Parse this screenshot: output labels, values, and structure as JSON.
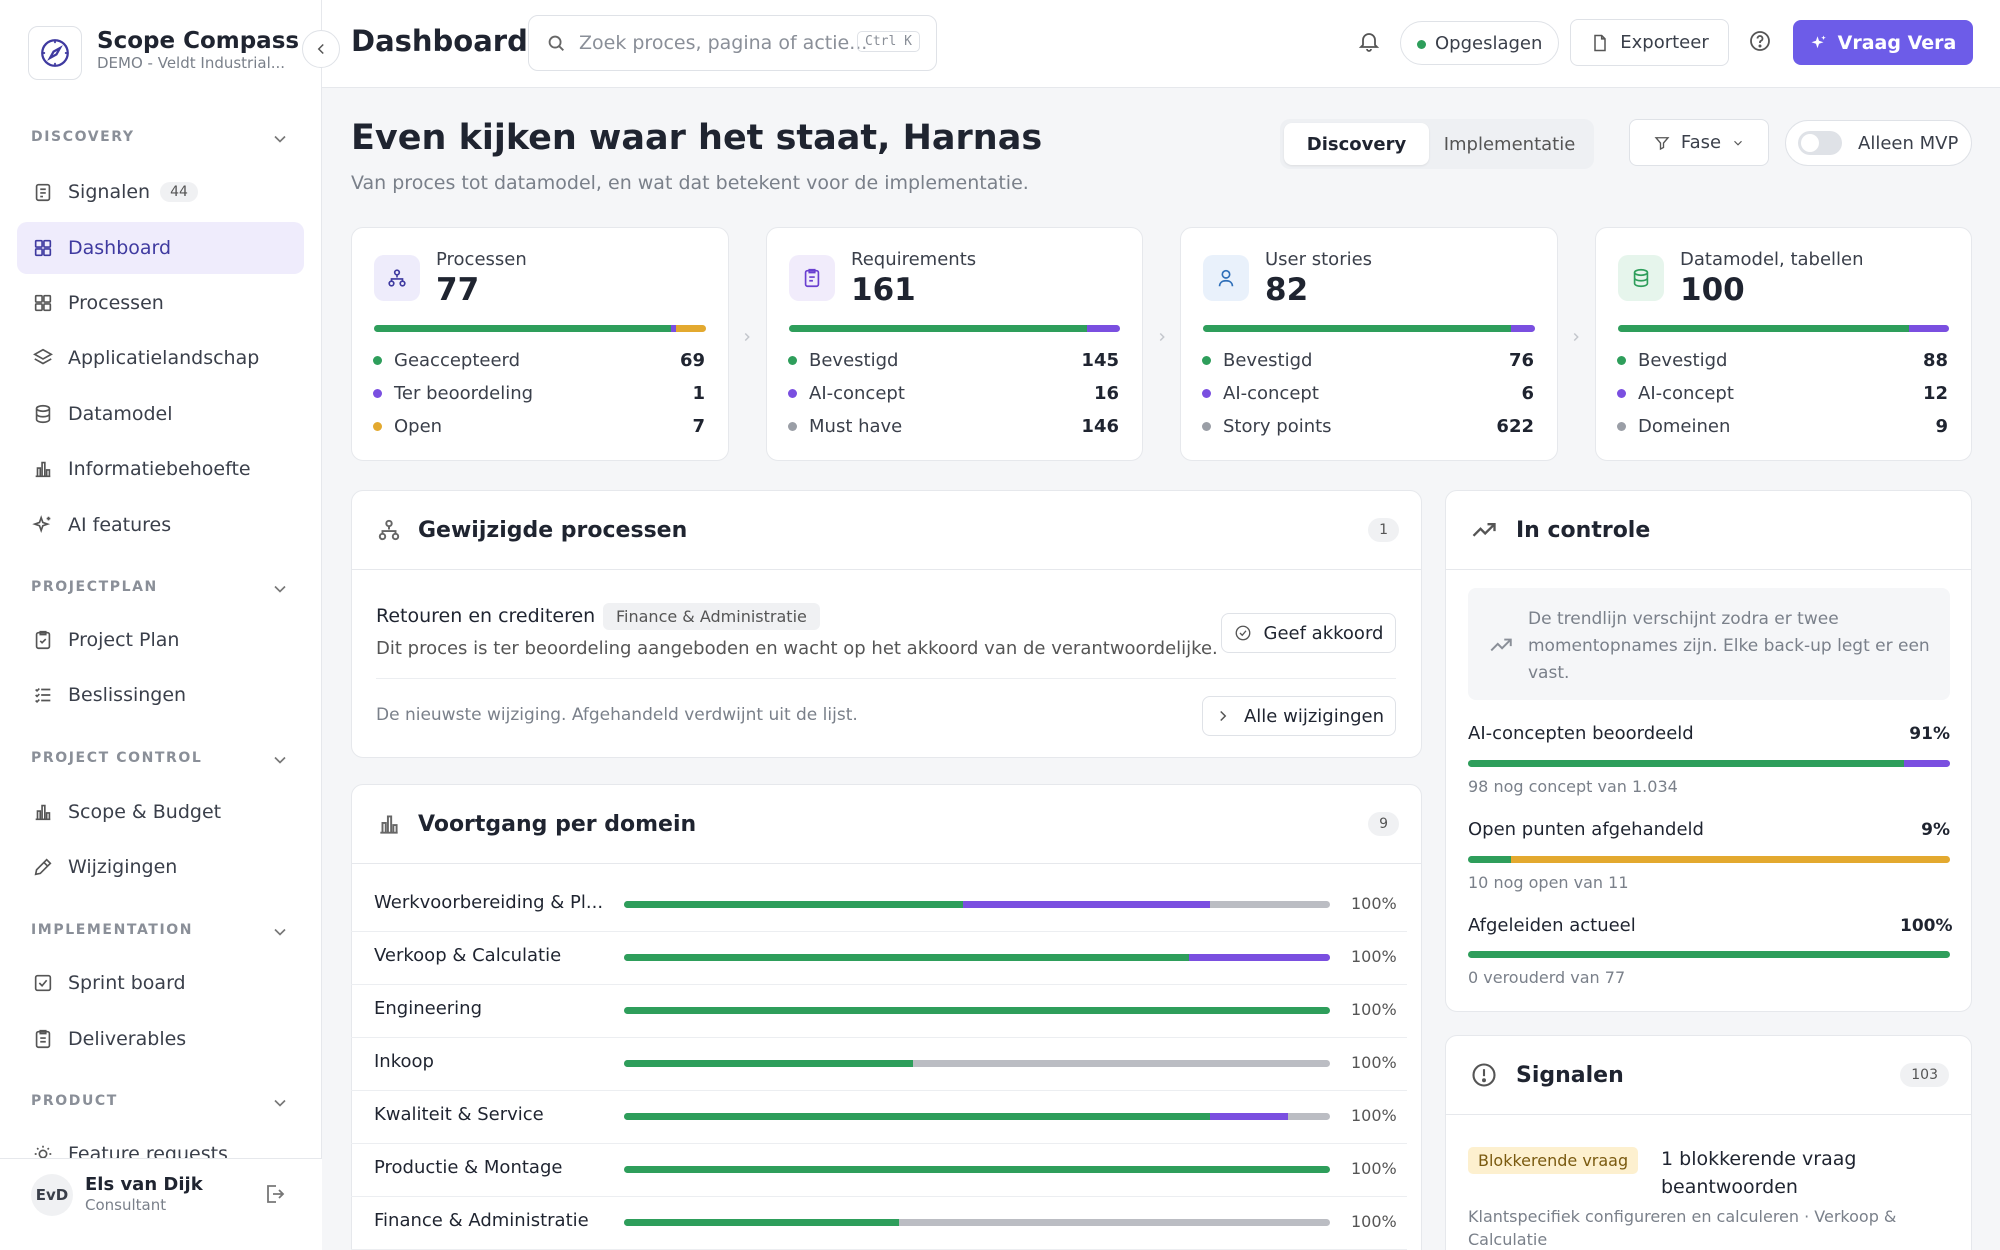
{
  "app": {
    "name": "Scope Compass",
    "subtitle": "DEMO - Veldt Industrial..."
  },
  "sidebar": {
    "sections": [
      {
        "label": "DISCOVERY"
      },
      {
        "label": "PROJECTPLAN"
      },
      {
        "label": "PROJECT CONTROL"
      },
      {
        "label": "IMPLEMENTATION"
      },
      {
        "label": "PRODUCT"
      }
    ],
    "items": [
      {
        "label": "Signalen",
        "count": "44"
      },
      {
        "label": "Dashboard"
      },
      {
        "label": "Processen"
      },
      {
        "label": "Applicatielandschap"
      },
      {
        "label": "Datamodel"
      },
      {
        "label": "Informatiebehoefte"
      },
      {
        "label": "AI features"
      },
      {
        "label": "Project Plan"
      },
      {
        "label": "Beslissingen"
      },
      {
        "label": "Scope & Budget"
      },
      {
        "label": "Wijzigingen"
      },
      {
        "label": "Sprint board"
      },
      {
        "label": "Deliverables"
      },
      {
        "label": "Feature requests"
      }
    ],
    "user": {
      "initials": "EvD",
      "name": "Els van Dijk",
      "role": "Consultant"
    }
  },
  "header": {
    "title": "Dashboard",
    "search_placeholder": "Zoek proces, pagina of actie...",
    "search_shortcut": "Ctrl K",
    "status": "Opgeslagen",
    "export_label": "Exporteer",
    "ask_label": "Vraag Vera"
  },
  "hero": {
    "greeting": "Even kijken waar het staat, Harnas",
    "subtitle": "Van proces tot datamodel, en wat dat betekent voor de implementatie.",
    "tabs": [
      "Discovery",
      "Implementatie"
    ],
    "filter_label": "Fase",
    "mvp_label": "Alleen MVP"
  },
  "stats": [
    {
      "label": "Processen",
      "value": "77",
      "bar": [
        {
          "frac": 0.896,
          "color": "#2e9e5b"
        },
        {
          "frac": 0.013,
          "color": "#7a4fe0"
        },
        {
          "frac": 0.091,
          "color": "#e3a92f"
        }
      ],
      "rows": [
        {
          "label": "Geaccepteerd",
          "value": "69",
          "color": "#2e9e5b"
        },
        {
          "label": "Ter beoordeling",
          "value": "1",
          "color": "#7a4fe0"
        },
        {
          "label": "Open",
          "value": "7",
          "color": "#e3a92f"
        }
      ]
    },
    {
      "label": "Requirements",
      "value": "161",
      "bar": [
        {
          "frac": 0.9,
          "color": "#2e9e5b"
        },
        {
          "frac": 0.1,
          "color": "#7a4fe0"
        }
      ],
      "rows": [
        {
          "label": "Bevestigd",
          "value": "145",
          "color": "#2e9e5b"
        },
        {
          "label": "AI-concept",
          "value": "16",
          "color": "#7a4fe0"
        },
        {
          "label": "Must have",
          "value": "146",
          "color": "#9a9ea6"
        }
      ]
    },
    {
      "label": "User stories",
      "value": "82",
      "bar": [
        {
          "frac": 0.927,
          "color": "#2e9e5b"
        },
        {
          "frac": 0.073,
          "color": "#7a4fe0"
        }
      ],
      "rows": [
        {
          "label": "Bevestigd",
          "value": "76",
          "color": "#2e9e5b"
        },
        {
          "label": "AI-concept",
          "value": "6",
          "color": "#7a4fe0"
        },
        {
          "label": "Story points",
          "value": "622",
          "color": "#9a9ea6"
        }
      ]
    },
    {
      "label": "Datamodel, tabellen",
      "value": "100",
      "bar": [
        {
          "frac": 0.88,
          "color": "#2e9e5b"
        },
        {
          "frac": 0.12,
          "color": "#7a4fe0"
        }
      ],
      "rows": [
        {
          "label": "Bevestigd",
          "value": "88",
          "color": "#2e9e5b"
        },
        {
          "label": "AI-concept",
          "value": "12",
          "color": "#7a4fe0"
        },
        {
          "label": "Domeinen",
          "value": "9",
          "color": "#9a9ea6"
        }
      ]
    }
  ],
  "changes": {
    "title": "Gewijzigde processen",
    "count": "1",
    "item": {
      "name": "Retouren en crediteren",
      "tag": "Finance & Administratie",
      "description": "Dit proces is ter beoordeling aangeboden en wacht op het akkoord van de verantwoordelijke.",
      "action": "Geef akkoord"
    },
    "footer": "De nieuwste wijziging. Afgehandeld verdwijnt uit de lijst.",
    "all_label": "Alle wijzigingen"
  },
  "domains": {
    "title": "Voortgang per domein",
    "count": "9",
    "rows": [
      {
        "name": "Werkvoorbereiding & Pl...",
        "pct": "100%",
        "green": 0.48,
        "purple": 0.35
      },
      {
        "name": "Verkoop & Calculatie",
        "pct": "100%",
        "green": 0.8,
        "purple": 0.2
      },
      {
        "name": "Engineering",
        "pct": "100%",
        "green": 1.0,
        "purple": 0
      },
      {
        "name": "Inkoop",
        "pct": "100%",
        "green": 0.41,
        "purple": 0
      },
      {
        "name": "Kwaliteit & Service",
        "pct": "100%",
        "green": 0.83,
        "purple": 0.11
      },
      {
        "name": "Productie & Montage",
        "pct": "100%",
        "green": 1.0,
        "purple": 0
      },
      {
        "name": "Finance & Administratie",
        "pct": "100%",
        "green": 0.39,
        "purple": 0
      }
    ]
  },
  "control": {
    "title": "In controle",
    "note": "De trendlijn verschijnt zodra er twee momentopnames zijn. Elke back-up legt er een vast.",
    "metrics": [
      {
        "label": "AI-concepten beoordeeld",
        "pct": "91%",
        "sub": "98 nog concept van 1.034",
        "bar": [
          {
            "frac": 0.905,
            "color": "#2e9e5b"
          },
          {
            "frac": 0.095,
            "color": "#7a4fe0"
          }
        ]
      },
      {
        "label": "Open punten afgehandeld",
        "pct": "9%",
        "sub": "10 nog open van 11",
        "bar": [
          {
            "frac": 0.09,
            "color": "#2e9e5b"
          },
          {
            "frac": 0.91,
            "color": "#e3a92f"
          }
        ]
      },
      {
        "label": "Afgeleiden actueel",
        "pct": "100%",
        "sub": "0 verouderd van 77",
        "bar": [
          {
            "frac": 1.0,
            "color": "#2e9e5b"
          }
        ]
      }
    ]
  },
  "signals": {
    "title": "Signalen",
    "count": "103",
    "item": {
      "tag": "Blokkerende vraag",
      "title": "1 blokkerende vraag beantwoorden",
      "sub": "Klantspecifiek configureren en calculeren · Verkoop & Calculatie"
    }
  }
}
